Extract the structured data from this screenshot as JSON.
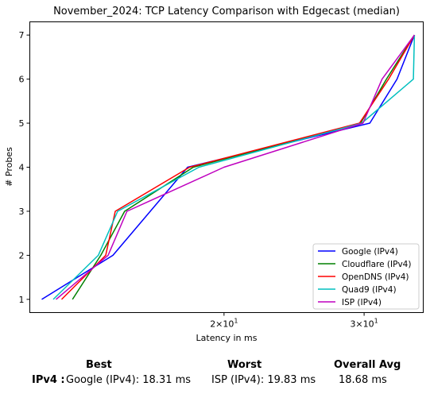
{
  "chart_data": {
    "type": "line",
    "title": "November_2024: TCP Latency Comparison with Edgecast (median)",
    "xlabel": "Latency in ms",
    "ylabel": "# Probes",
    "xscale": "log",
    "xlim": [
      11.4,
      35.6
    ],
    "ylim": [
      0.7,
      7.3
    ],
    "xticks": [
      20,
      30
    ],
    "xtick_labels": [
      {
        "base": "2×10",
        "exp": "1"
      },
      {
        "base": "3×10",
        "exp": "1"
      }
    ],
    "yticks": [
      1,
      2,
      3,
      4,
      5,
      6,
      7
    ],
    "grid": false,
    "legend_position": "lower-right",
    "series": [
      {
        "name": "Google (IPv4)",
        "color": "#0000ff",
        "points": [
          [
            11.8,
            1
          ],
          [
            14.5,
            2
          ],
          [
            18.0,
            4
          ],
          [
            30.5,
            5
          ],
          [
            33.0,
            6
          ],
          [
            34.7,
            7
          ]
        ]
      },
      {
        "name": "Cloudflare (IPv4)",
        "color": "#008000",
        "points": [
          [
            12.9,
            1
          ],
          [
            14.0,
            2
          ],
          [
            15.0,
            3
          ],
          [
            18.3,
            4
          ],
          [
            29.7,
            5
          ],
          [
            32.0,
            6
          ],
          [
            34.7,
            7
          ]
        ]
      },
      {
        "name": "OpenDNS (IPv4)",
        "color": "#ff0000",
        "points": [
          [
            12.5,
            1
          ],
          [
            14.2,
            2
          ],
          [
            14.6,
            3
          ],
          [
            18.1,
            4
          ],
          [
            29.6,
            5
          ],
          [
            32.2,
            6
          ],
          [
            34.7,
            7
          ]
        ]
      },
      {
        "name": "Quad9 (IPv4)",
        "color": "#00bfbf",
        "points": [
          [
            12.2,
            1
          ],
          [
            13.9,
            2
          ],
          [
            14.7,
            3
          ],
          [
            18.6,
            4
          ],
          [
            29.8,
            5
          ],
          [
            34.6,
            6
          ],
          [
            34.7,
            7
          ]
        ]
      },
      {
        "name": "ISP (IPv4)",
        "color": "#bf00bf",
        "points": [
          [
            12.3,
            1
          ],
          [
            14.3,
            2
          ],
          [
            15.1,
            3
          ],
          [
            20.0,
            4
          ],
          [
            29.9,
            5
          ],
          [
            31.6,
            6
          ],
          [
            34.7,
            7
          ]
        ]
      }
    ]
  },
  "summary": {
    "best_header": "Best",
    "worst_header": "Worst",
    "avg_header": "Overall Avg",
    "row_label": "IPv4 :",
    "best_value": "Google (IPv4): 18.31 ms",
    "worst_value": "ISP (IPv4): 19.83 ms",
    "avg_value": "18.68 ms"
  }
}
